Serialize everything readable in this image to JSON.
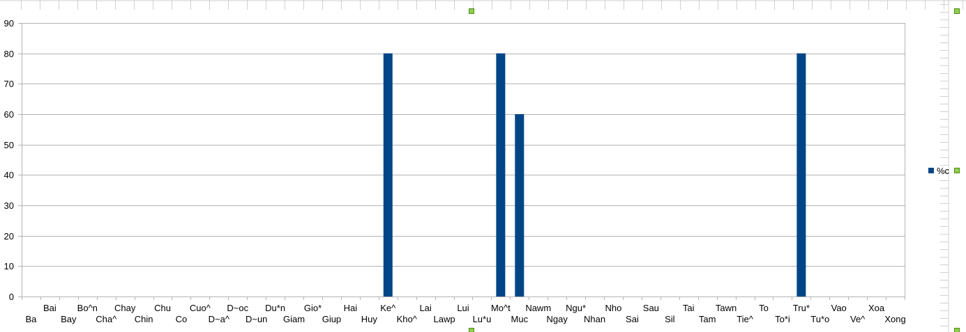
{
  "colors": {
    "bar": "#004586",
    "grid": "#b3b3b3",
    "axis": "#b3b3b3",
    "handle": "#8ed04a",
    "handle_border": "#4e8a1a",
    "ruler": "#d0d0d0"
  },
  "chart_data": {
    "type": "bar",
    "categories": [
      "Ba",
      "Bai",
      "Bay",
      "Bo^n",
      "Cha^",
      "Chay",
      "Chin",
      "Chu",
      "Co",
      "Cuo^",
      "D~a^",
      "D~oc",
      "D~un",
      "Du*n",
      "Giam",
      "Gio*",
      "Giup",
      "Hai",
      "Huy",
      "Ke^",
      "Kho^",
      "Lai",
      "Lawp",
      "Lui",
      "Lu*u",
      "Mo^t",
      "Muc",
      "Nawm",
      "Ngay",
      "Ngu*",
      "Nhan",
      "Nho",
      "Sai",
      "Sau",
      "Sil",
      "Tai",
      "Tam",
      "Tawn",
      "Tie^",
      "To",
      "To*i",
      "Tru*",
      "Tu*o",
      "Vao",
      "Ve^",
      "Xoa",
      "Xong"
    ],
    "series": [
      {
        "name": "%c",
        "values": [
          0,
          0,
          0,
          0,
          0,
          0,
          0,
          0,
          0,
          0,
          0,
          0,
          0,
          0,
          0,
          0,
          0,
          0,
          0,
          80,
          0,
          0,
          0,
          0,
          0,
          80,
          60,
          0,
          0,
          0,
          0,
          0,
          0,
          0,
          0,
          0,
          0,
          0,
          0,
          0,
          0,
          80,
          0,
          0,
          0,
          0,
          0
        ]
      }
    ],
    "ylim": [
      0,
      90
    ],
    "yticks": [
      0,
      10,
      20,
      30,
      40,
      50,
      60,
      70,
      80,
      90
    ],
    "grid": true,
    "legend_position": "right",
    "title": "",
    "xlabel": "",
    "ylabel": ""
  }
}
